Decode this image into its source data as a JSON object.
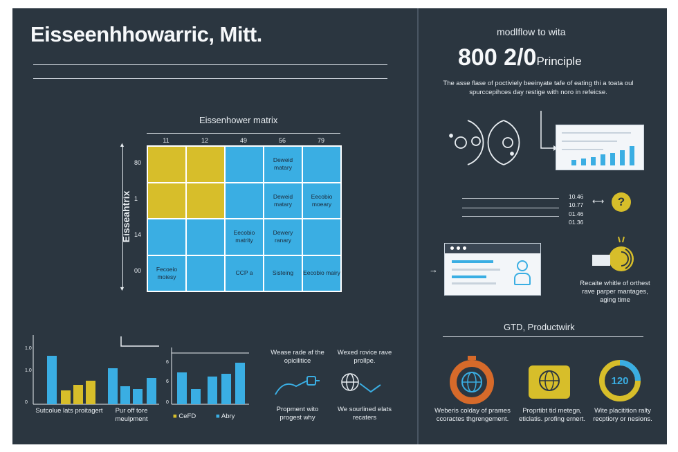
{
  "title": "Eisseenhhowarric, Mitt.",
  "matrix": {
    "title": "Eissenhower matrix",
    "y_label": "Eisseahtrix",
    "col_headers": [
      "11",
      "12",
      "49",
      "56",
      "79"
    ],
    "row_headers": [
      "80",
      "1",
      "14",
      "00"
    ],
    "cells": [
      [
        "",
        "",
        "",
        "Deweid matary",
        ""
      ],
      [
        "",
        "",
        "",
        "Deweid matary",
        "Eecobio moeary"
      ],
      [
        "",
        "",
        "Eecobio matrity",
        "Dewery ranary",
        ""
      ],
      [
        "Fecoeio moiesy",
        "",
        "CCP a",
        "Sisteing",
        "Eecobio mairy"
      ]
    ]
  },
  "bottom_left": {
    "chart1": {
      "y_ticks": [
        "1.0",
        "1.0",
        "0"
      ],
      "caption": "Sutcolue lats proitagert"
    },
    "chart2": {
      "caption": "Pur off tore meulpment"
    },
    "chart3": {
      "y_ticks": [
        "6",
        "6",
        "0"
      ],
      "legend": [
        "CeFD",
        "Abry"
      ]
    },
    "item1": {
      "top": "Wease rade af the opicilitice",
      "bottom": "Propment wito progest why"
    },
    "item2": {
      "top": "Wexed rovice rave prollpe.",
      "bottom": "We sourlined elats recaters"
    }
  },
  "right": {
    "heading": "modlflow to wita",
    "big_number": "800 2/0",
    "big_suffix": "Principle",
    "description": "The asse flase of poctiviely beeinyate tafe of eating thi a toata oul spurccepihces day restige with noro in refeicse.",
    "time_values": [
      "10.46",
      "10.77",
      "01.46",
      "01.36"
    ],
    "question_mark": "?",
    "side_text": "Recaite whitle of orthest rave parper mantages, aging time",
    "gtd_title": "GTD, Productwirk",
    "icons": [
      {
        "caption": "Weberis colday of prames ccoractes thgrengement."
      },
      {
        "caption": "Proprtibt tid metegn, eticlatis. profing ernert."
      },
      {
        "value": "120",
        "caption": "Wite placitition ralty recptiory or nesions."
      }
    ]
  },
  "colors": {
    "background": "#2b3640",
    "yellow": "#d7be2a",
    "blue": "#3aaee3",
    "orange": "#d66a2a"
  }
}
